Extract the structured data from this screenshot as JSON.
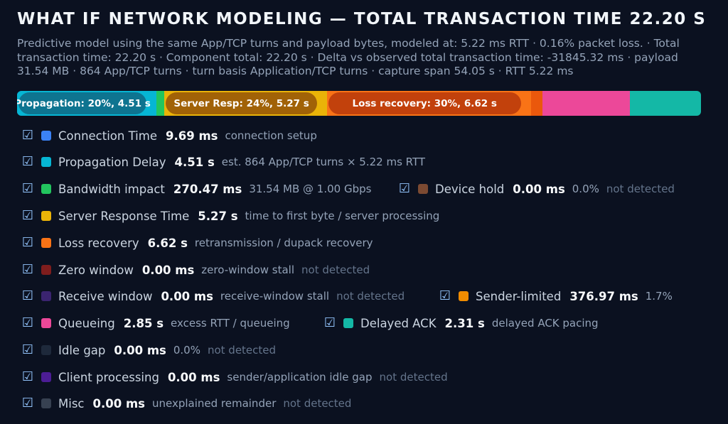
{
  "title": "WHAT IF NETWORK MODELING — TOTAL TRANSACTION TIME 22.20 S",
  "description": "Predictive model using the same App/TCP turns and payload bytes, modeled at: 5.22 ms RTT · 0.16% packet loss. · Total transaction time: 22.20 s · Component total: 22.20 s · Delta vs observed total transaction time: -31845.32 ms · payload 31.54 MB · 864 App/TCP turns · turn basis Application/TCP turns · capture span 54.05 s · RTT 5.22 ms",
  "checkbox_glyph": "☑",
  "bar": {
    "segments": [
      {
        "key": "connection",
        "fraction": 0.0004,
        "color": "#3b82f6",
        "label": ""
      },
      {
        "key": "propagation",
        "fraction": 0.203,
        "color": "#06b6d4",
        "label": "Propagation: 20%, 4.51 s",
        "pill": "#0e7490"
      },
      {
        "key": "bandwidth",
        "fraction": 0.0122,
        "color": "#22c55e",
        "label": ""
      },
      {
        "key": "server",
        "fraction": 0.2374,
        "color": "#eab308",
        "label": "Server Resp: 24%, 5.27 s",
        "pill": "#a16207"
      },
      {
        "key": "loss",
        "fraction": 0.2982,
        "color": "#f97316",
        "label": "Loss recovery: 30%, 6.62 s",
        "pill": "#c2410c"
      },
      {
        "key": "sender",
        "fraction": 0.017,
        "color": "#ea580c",
        "label": ""
      },
      {
        "key": "queueing",
        "fraction": 0.1284,
        "color": "#ec4899",
        "label": ""
      },
      {
        "key": "delayed_ack",
        "fraction": 0.1041,
        "color": "#14b8a6",
        "label": ""
      }
    ]
  },
  "rows": [
    {
      "id": "connection",
      "name": "Connection Time",
      "value": "9.69 ms",
      "note": "connection setup",
      "nd": "",
      "color": "#3b82f6"
    },
    {
      "id": "propagation",
      "name": "Propagation Delay",
      "value": "4.51 s",
      "note": "est. 864 App/TCP turns × 5.22 ms RTT",
      "nd": "",
      "color": "#06b6d4"
    },
    {
      "id": "bandwidth",
      "name": "Bandwidth impact",
      "value": "270.47 ms",
      "note": "31.54 MB @ 1.00 Gbps",
      "nd": "",
      "color": "#22c55e"
    },
    {
      "id": "device-hold",
      "name": "Device hold",
      "value": "0.00 ms",
      "note": "0.0%",
      "nd": "not detected",
      "color": "#7c4a32"
    },
    {
      "id": "server",
      "name": "Server Response Time",
      "value": "5.27 s",
      "note": "time to first byte / server processing",
      "nd": "",
      "color": "#eab308"
    },
    {
      "id": "loss",
      "name": "Loss recovery",
      "value": "6.62 s",
      "note": "retransmission / dupack recovery",
      "nd": "",
      "color": "#f97316"
    },
    {
      "id": "zero-window",
      "name": "Zero window",
      "value": "0.00 ms",
      "note": "zero-window stall",
      "nd": "not detected",
      "color": "#7f1d1d"
    },
    {
      "id": "receive-window",
      "name": "Receive window",
      "value": "0.00 ms",
      "note": "receive-window stall",
      "nd": "not detected",
      "color": "#3b2470"
    },
    {
      "id": "sender-limited",
      "name": "Sender-limited",
      "value": "376.97 ms",
      "note": "1.7%",
      "nd": "",
      "color": "#f08c00"
    },
    {
      "id": "queueing",
      "name": "Queueing",
      "value": "2.85 s",
      "note": "excess RTT / queueing",
      "nd": "",
      "color": "#ec4899"
    },
    {
      "id": "delayed-ack",
      "name": "Delayed ACK",
      "value": "2.31 s",
      "note": "delayed ACK pacing",
      "nd": "",
      "color": "#14b8a6"
    },
    {
      "id": "idle-gap",
      "name": "Idle gap",
      "value": "0.00 ms",
      "note": "0.0%",
      "nd": "not detected",
      "color": "#1e293b"
    },
    {
      "id": "client-processing",
      "name": "Client processing",
      "value": "0.00 ms",
      "note": "sender/application idle gap",
      "nd": "not detected",
      "color": "#4c1d95"
    },
    {
      "id": "misc",
      "name": "Misc",
      "value": "0.00 ms",
      "note": "unexplained remainder",
      "nd": "not detected",
      "color": "#374151"
    }
  ]
}
